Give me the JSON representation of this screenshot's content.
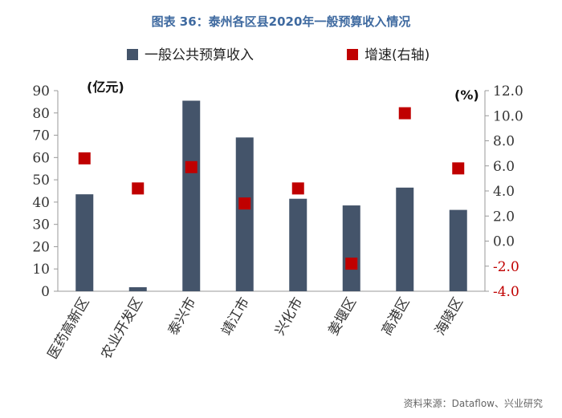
{
  "chart_data": {
    "type": "bar",
    "title": "图表 36：泰州各区县2020年一般预算收入情况",
    "source": "资料来源：Dataflow、兴业研究",
    "categories": [
      "医药高新区",
      "农业开发区",
      "泰兴市",
      "靖江市",
      "兴化市",
      "姜堰区",
      "高港区",
      "海陵区"
    ],
    "series": [
      {
        "name": "一般公共预算收入",
        "type": "bar",
        "axis": "left",
        "color": "#44546a",
        "values": [
          43.5,
          1.8,
          85.5,
          69.0,
          41.5,
          38.5,
          46.5,
          36.5
        ]
      },
      {
        "name": "增速(右轴)",
        "type": "scatter",
        "axis": "right",
        "color": "#c00000",
        "values": [
          6.6,
          4.2,
          5.9,
          3.0,
          4.2,
          -1.8,
          10.2,
          5.8
        ]
      }
    ],
    "y_left": {
      "unit_label": "(亿元)",
      "min": 0,
      "max": 90,
      "step": 10,
      "ticks": [
        "0",
        "10",
        "20",
        "30",
        "40",
        "50",
        "60",
        "70",
        "80",
        "90"
      ]
    },
    "y_right": {
      "unit_label": "(%)",
      "min": -4,
      "max": 12,
      "step": 2,
      "ticks": [
        "-4.0",
        "-2.0",
        "0.0",
        "2.0",
        "4.0",
        "6.0",
        "8.0",
        "10.0",
        "12.0"
      ]
    },
    "negative_tick_color": "#c00000",
    "legend_position": "top"
  }
}
